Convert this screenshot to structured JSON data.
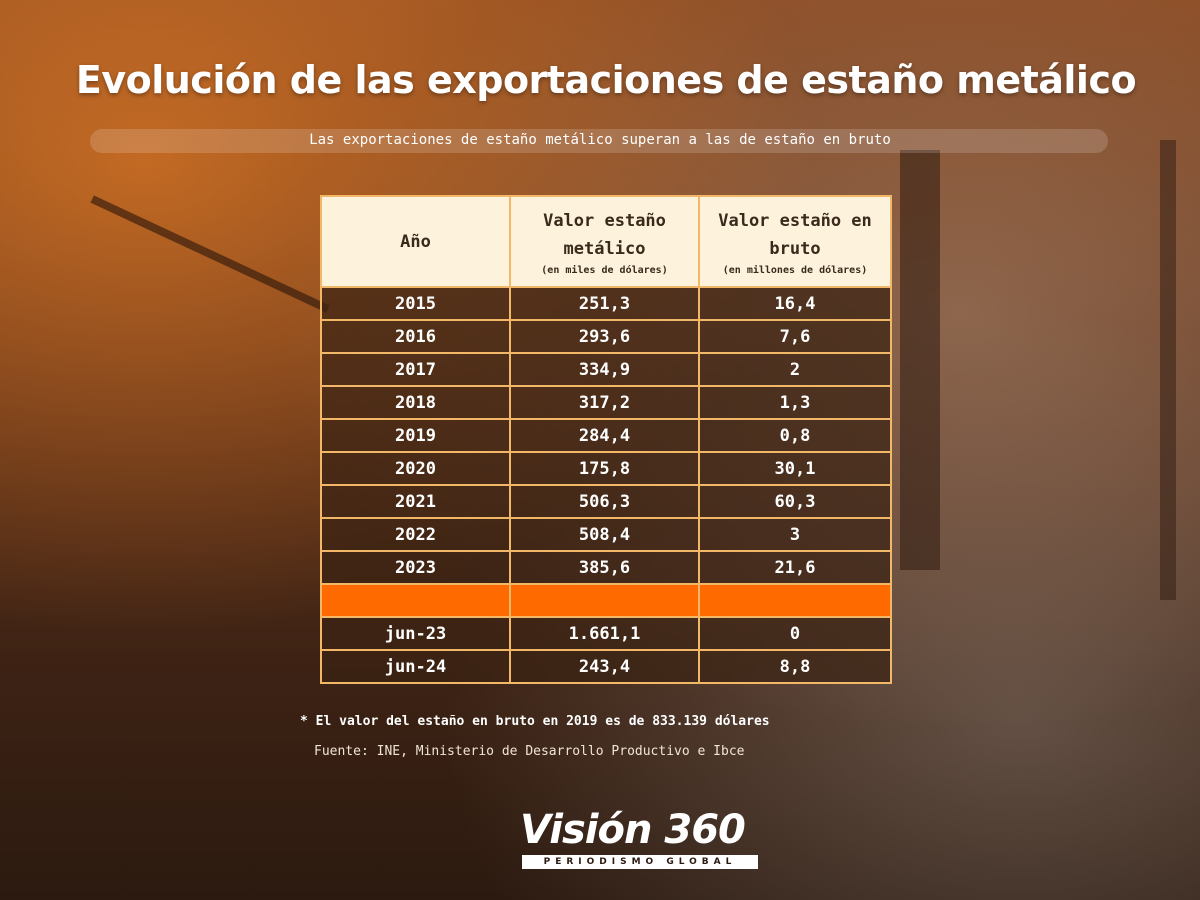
{
  "title": "Evolución de las exportaciones de estaño metálico",
  "subtitle": "Las exportaciones de estaño metálico superan a las de estaño en bruto",
  "table": {
    "headers": [
      {
        "main": "Año",
        "sub": ""
      },
      {
        "main": "Valor estaño metálico",
        "sub": "(en miles de dólares)"
      },
      {
        "main": "Valor estaño en bruto",
        "sub": "(en millones de dólares)"
      }
    ],
    "rows": [
      [
        "2015",
        "251,3",
        "16,4"
      ],
      [
        "2016",
        "293,6",
        "7,6"
      ],
      [
        "2017",
        "334,9",
        "2"
      ],
      [
        "2018",
        "317,2",
        "1,3"
      ],
      [
        "2019",
        "284,4",
        "0,8"
      ],
      [
        "2020",
        "175,8",
        "30,1"
      ],
      [
        "2021",
        "506,3",
        "60,3"
      ],
      [
        "2022",
        "508,4",
        "3"
      ],
      [
        "2023",
        "385,6",
        "21,6"
      ]
    ],
    "partial_rows": [
      [
        "jun-23",
        "1.661,1",
        "0"
      ],
      [
        "jun-24",
        "243,4",
        "8,8"
      ]
    ],
    "separator_color": "#ff6a00"
  },
  "note": "* El valor del estaño en bruto en 2019 es de 833.139 dólares",
  "source": "Fuente: INE, Ministerio de Desarrollo Productivo e Ibce",
  "logo": {
    "name": "Visión 360",
    "tagline": "PERIODISMO GLOBAL"
  }
}
